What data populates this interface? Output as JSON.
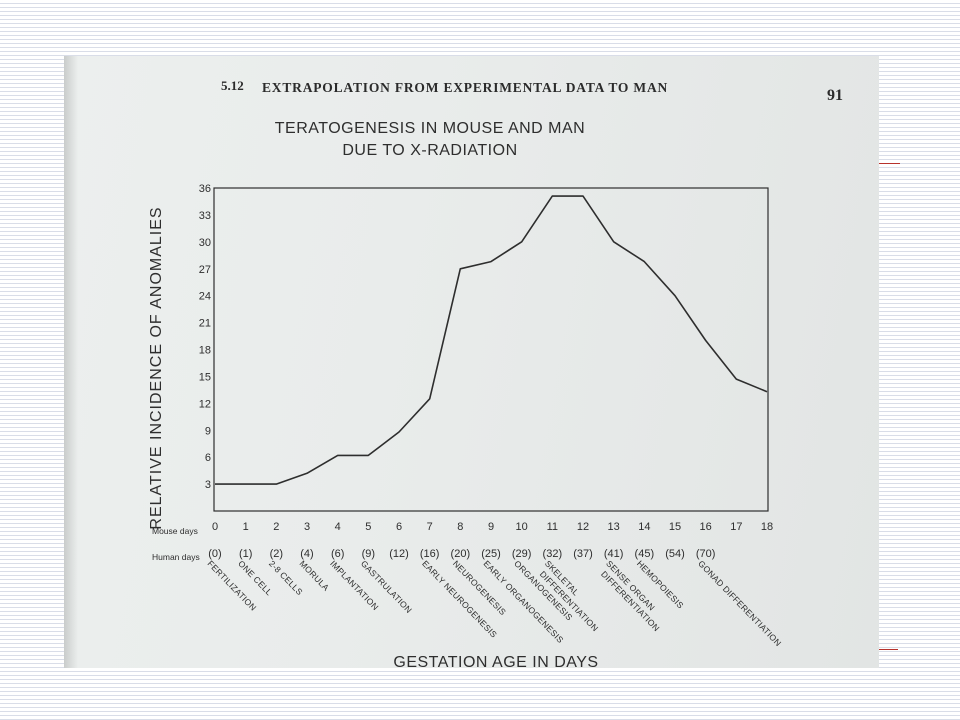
{
  "page_header": {
    "section": "5.12",
    "title": "EXTRAPOLATION FROM EXPERIMENTAL DATA TO MAN",
    "page_number": "91"
  },
  "chart_data": {
    "type": "line",
    "title_line1": "TERATOGENESIS IN MOUSE AND MAN",
    "title_line2": "DUE TO X-RADIATION",
    "ylabel": "RELATIVE INCIDENCE OF ANOMALIES",
    "xlabel": "GESTATION AGE IN DAYS",
    "ylim": [
      0,
      36
    ],
    "xlim": [
      0,
      18
    ],
    "y_ticks": [
      3,
      6,
      9,
      12,
      15,
      18,
      21,
      24,
      27,
      30,
      33,
      36
    ],
    "mouse_days_label": "Mouse days",
    "human_days_label": "Human days",
    "mouse_days": [
      "0",
      "1",
      "2",
      "3",
      "4",
      "5",
      "6",
      "7",
      "8",
      "9",
      "10",
      "11",
      "12",
      "13",
      "14",
      "15",
      "16",
      "17",
      "18"
    ],
    "human_days": [
      "(0)",
      "(1)",
      "(2)",
      "(4)",
      "(6)",
      "(9)",
      "(12)",
      "(16)",
      "(20)",
      "(25)",
      "(29)",
      "(32)",
      "(37)",
      "(41)",
      "(45)",
      "(54)",
      "(70)"
    ],
    "stages": [
      {
        "day": 0,
        "lines": [
          "FERTILIZATION"
        ]
      },
      {
        "day": 1,
        "lines": [
          "ONE CELL"
        ]
      },
      {
        "day": 2,
        "lines": [
          "2-8 CELLS"
        ]
      },
      {
        "day": 3,
        "lines": [
          "MORULA"
        ]
      },
      {
        "day": 4,
        "lines": [
          "IMPLANTATION"
        ]
      },
      {
        "day": 5,
        "lines": [
          "GASTRULATION"
        ]
      },
      {
        "day": 7,
        "lines": [
          "EARLY NEUROGENESIS"
        ]
      },
      {
        "day": 8,
        "lines": [
          "NEUROGENESIS"
        ]
      },
      {
        "day": 9,
        "lines": [
          "EARLY ORGANOGENESIS"
        ]
      },
      {
        "day": 10,
        "lines": [
          "ORGANOGENESIS"
        ]
      },
      {
        "day": 11,
        "lines": [
          "SKELETAL",
          "DIFFERENTIATION"
        ]
      },
      {
        "day": 13,
        "lines": [
          "SENSE ORGAN",
          "DIFFERENTIATION"
        ]
      },
      {
        "day": 14,
        "lines": [
          "HEMOPOIESIS"
        ]
      },
      {
        "day": 16,
        "lines": [
          "GONAD DIFFERENTIATION"
        ]
      }
    ],
    "series": [
      {
        "x": [
          0,
          1,
          2,
          3,
          4,
          5,
          6,
          7,
          8,
          9,
          10,
          11,
          12,
          13,
          14,
          15,
          16,
          17,
          18
        ],
        "values": [
          3,
          3,
          3,
          4.2,
          6.2,
          6.2,
          8.8,
          12.5,
          27,
          27.8,
          30,
          35.1,
          35.1,
          30,
          27.8,
          24,
          19,
          14.7,
          13.3
        ]
      }
    ],
    "grid": false
  },
  "colors": {
    "ink": "#2e2e2e",
    "paper": "#e9eceb",
    "accent_line": "#b8322c"
  }
}
